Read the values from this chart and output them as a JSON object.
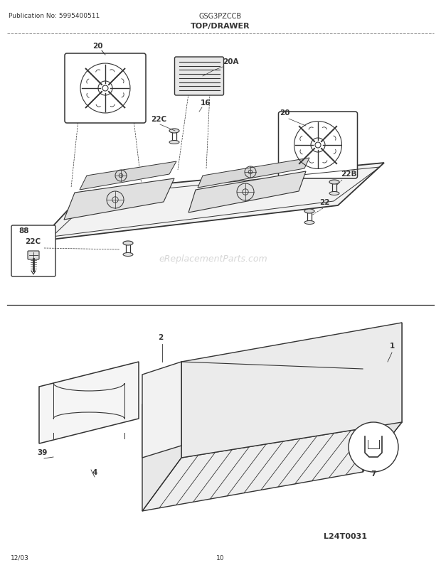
{
  "bg_color": "#ffffff",
  "fig_width": 6.2,
  "fig_height": 8.03,
  "dpi": 100,
  "header_left": "Publication No: 5995400511",
  "header_center": "GSG3PZCCB",
  "header_title": "TOP/DRAWER",
  "footer_left": "12/03",
  "footer_center": "10",
  "watermark": "eReplacementParts.com",
  "diagram_id": "L24T0031",
  "line_color": "#333333",
  "light_gray": "#aaaaaa",
  "label_color": "#111111",
  "watermark_color": "#cccccc"
}
